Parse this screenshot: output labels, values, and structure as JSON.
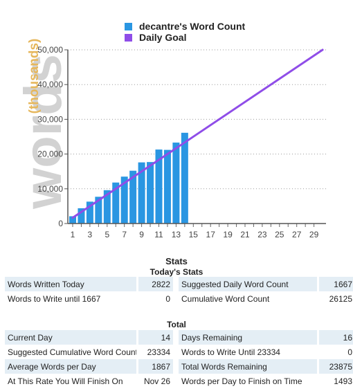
{
  "chart_data": {
    "type": "bar",
    "ylabel_big": "words",
    "ylabel_small": "(thousands)",
    "x": [
      1,
      2,
      3,
      4,
      5,
      6,
      7,
      8,
      9,
      10,
      11,
      12,
      13,
      14
    ],
    "x_ticks": [
      "1",
      "3",
      "5",
      "7",
      "9",
      "11",
      "13",
      "15",
      "17",
      "19",
      "21",
      "23",
      "25",
      "27",
      "29"
    ],
    "xlim": [
      1,
      30
    ],
    "ylim": [
      0,
      50000
    ],
    "y_ticks": [
      "0",
      "10,000",
      "20,000",
      "30,000",
      "40,000",
      "50,000"
    ],
    "grid": "dotted horizontal",
    "legend_position": "top",
    "series": [
      {
        "name": "decantre's Word Count",
        "kind": "bar",
        "color": "#2a96e2",
        "values": [
          2100,
          4400,
          6300,
          7700,
          9600,
          11800,
          13500,
          15200,
          17600,
          17700,
          21300,
          21200,
          23300,
          26125
        ]
      },
      {
        "name": "Daily Goal",
        "kind": "line",
        "color": "#8f4de8",
        "points": [
          [
            1,
            1667
          ],
          [
            30,
            50000
          ]
        ]
      }
    ]
  },
  "legend": {
    "items": [
      {
        "label": "decantre's Word Count",
        "color": "#2a96e2"
      },
      {
        "label": "Daily Goal",
        "color": "#8f4de8"
      }
    ]
  },
  "stats": {
    "title": "Stats",
    "today_title": "Today's Stats",
    "total_title": "Total",
    "today_rows": [
      {
        "l1": "Words Written Today",
        "v1": "2822",
        "l2": "Suggested Daily Word Count",
        "v2": "1667"
      },
      {
        "l1": "Words to Write until 1667",
        "v1": "0",
        "l2": "Cumulative Word Count",
        "v2": "26125"
      }
    ],
    "total_rows": [
      {
        "l1": "Current Day",
        "v1": "14",
        "l2": "Days Remaining",
        "v2": "16"
      },
      {
        "l1": "Suggested Cumulative Word Count",
        "v1": "23334",
        "l2": "Words to Write Until 23334",
        "v2": "0"
      },
      {
        "l1": "Average Words per Day",
        "v1": "1867",
        "l2": "Total Words Remaining",
        "v2": "23875"
      },
      {
        "l1": "At This Rate You Will Finish On",
        "v1": "Nov 26",
        "l2": "Words per Day to Finish on Time",
        "v2": "1493"
      }
    ]
  }
}
